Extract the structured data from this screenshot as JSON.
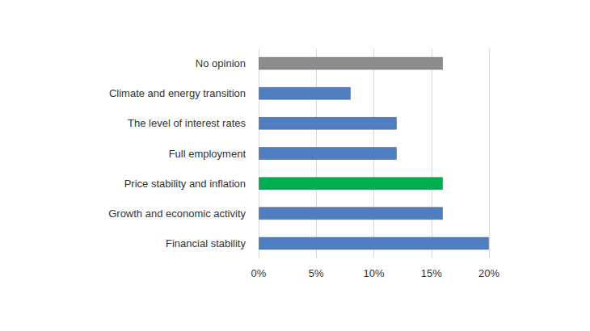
{
  "chart_data": {
    "type": "bar",
    "orientation": "horizontal",
    "categories": [
      "No opinion",
      "Climate and energy transition",
      "The level of interest rates",
      "Full employment",
      "Price stability and inflation",
      "Growth and economic activity",
      "Financial stability"
    ],
    "values": [
      16,
      8,
      12,
      12,
      16,
      16,
      20
    ],
    "colors": [
      "#8c8c8c",
      "#4f7fc0",
      "#4f7fc0",
      "#4f7fc0",
      "#00b050",
      "#4f7fc0",
      "#4f7fc0"
    ],
    "xlim": [
      0,
      20
    ],
    "xticks": [
      {
        "value": 0,
        "label": "0%"
      },
      {
        "value": 5,
        "label": "5%"
      },
      {
        "value": 10,
        "label": "10%"
      },
      {
        "value": 15,
        "label": "15%"
      },
      {
        "value": 20,
        "label": "20%"
      }
    ],
    "grid": true
  }
}
